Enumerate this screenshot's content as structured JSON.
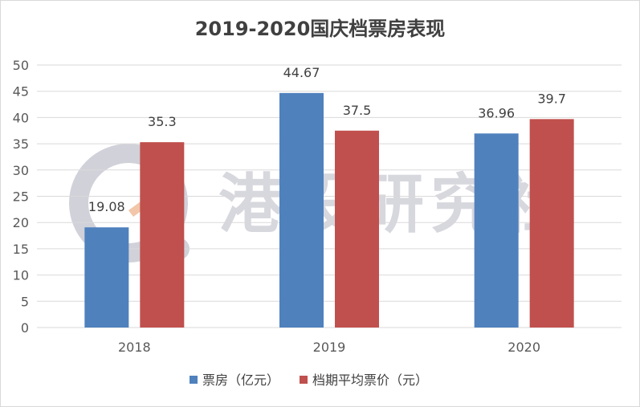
{
  "chart_data": {
    "type": "bar",
    "title": "2019-2020国庆档票房表现",
    "categories": [
      "2018",
      "2019",
      "2020"
    ],
    "series": [
      {
        "name": "票房（亿元）",
        "color": "#4f81bd",
        "values": [
          19.08,
          44.67,
          36.96
        ],
        "labels": [
          "19.08",
          "44.67",
          "36.96"
        ]
      },
      {
        "name": "档期平均票价（元）",
        "color": "#c0504d",
        "values": [
          35.3,
          37.5,
          39.7
        ],
        "labels": [
          "35.3",
          "37.5",
          "39.7"
        ]
      }
    ],
    "ylim": [
      0,
      50
    ],
    "yticks": [
      0,
      5,
      10,
      15,
      20,
      25,
      30,
      35,
      40,
      45,
      50
    ],
    "grid": true,
    "legend": "bottom",
    "xlabel": "",
    "ylabel": ""
  },
  "watermark": {
    "text": "港股研究社"
  }
}
